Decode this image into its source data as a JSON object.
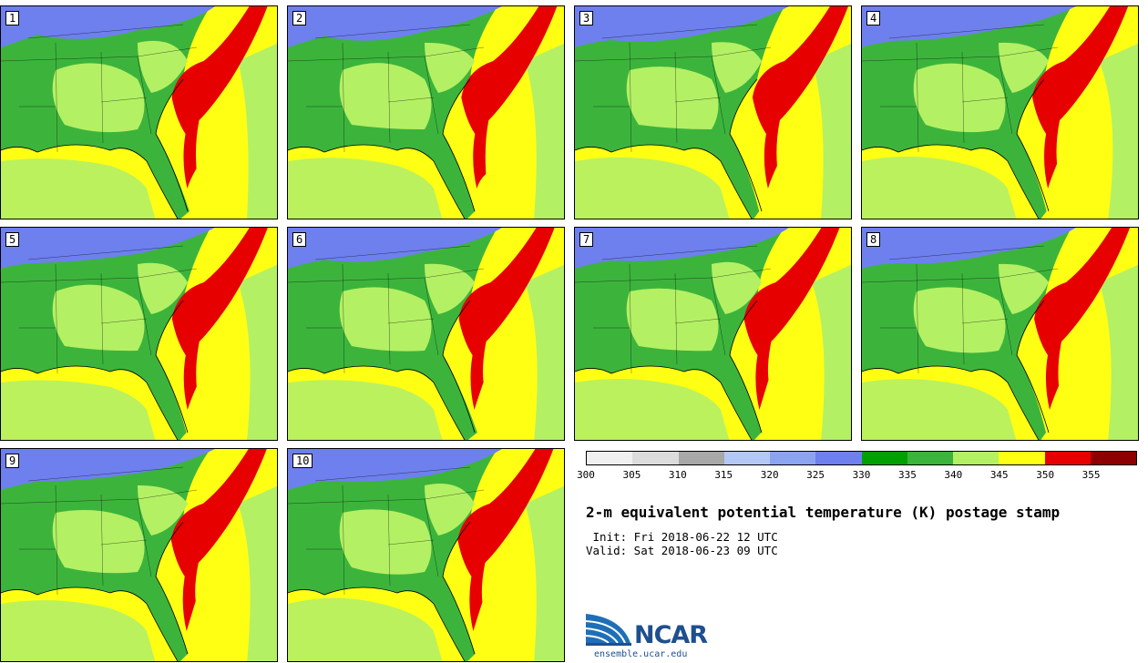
{
  "members": [
    {
      "label": "1"
    },
    {
      "label": "2"
    },
    {
      "label": "3"
    },
    {
      "label": "4"
    },
    {
      "label": "5"
    },
    {
      "label": "6"
    },
    {
      "label": "7"
    },
    {
      "label": "8"
    },
    {
      "label": "9"
    },
    {
      "label": "10"
    }
  ],
  "legend": {
    "bins": [
      {
        "value": "300",
        "color": "#f0f0f0"
      },
      {
        "value": "305",
        "color": "#dcdcdc"
      },
      {
        "value": "310",
        "color": "#a8a8a8"
      },
      {
        "value": "315",
        "color": "#b4c8f5"
      },
      {
        "value": "320",
        "color": "#8ca4f0"
      },
      {
        "value": "325",
        "color": "#6e80ee"
      },
      {
        "value": "330",
        "color": "#00a000"
      },
      {
        "value": "335",
        "color": "#3cb43c"
      },
      {
        "value": "340",
        "color": "#b4f064"
      },
      {
        "value": "345",
        "color": "#ffff14"
      },
      {
        "value": "350",
        "color": "#e60000"
      },
      {
        "value": "355",
        "color": "#8c0000"
      }
    ]
  },
  "title": "2-m equivalent potential temperature (K) postage stamp",
  "init": " Init: Fri 2018-06-22 12 UTC",
  "valid": "Valid: Sat 2018-06-23 09 UTC",
  "logo": {
    "word": "NCAR",
    "url": "ensemble.ucar.edu"
  },
  "colors": {
    "ocean_warm": "#ffff14",
    "land_moist": "#3cb43c",
    "land_dry": "#b4f064",
    "north_cool": "#6e80ee",
    "gulfstream": "#e60000"
  }
}
